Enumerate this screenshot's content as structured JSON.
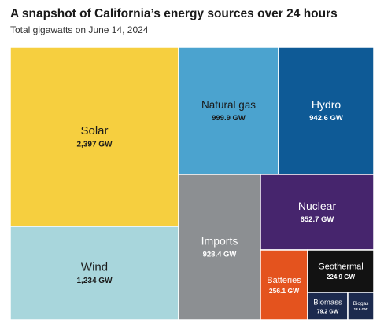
{
  "title": "A snapshot of California’s energy sources over 24 hours",
  "subtitle": "Total gigawatts on June 14, 2024",
  "chart_data": {
    "type": "treemap",
    "unit": "GW",
    "items": [
      {
        "name": "Solar",
        "label": "2,397 GW",
        "value": 2397,
        "color": "#f6cf3f"
      },
      {
        "name": "Wind",
        "label": "1,234 GW",
        "value": 1234,
        "color": "#a8d6dc"
      },
      {
        "name": "Natural gas",
        "label": "999.9 GW",
        "value": 999.9,
        "color": "#4ba3cf"
      },
      {
        "name": "Hydro",
        "label": "942.6 GW",
        "value": 942.6,
        "color": "#0e5a96"
      },
      {
        "name": "Imports",
        "label": "928.4 GW",
        "value": 928.4,
        "color": "#8c8f92"
      },
      {
        "name": "Nuclear",
        "label": "652.7 GW",
        "value": 652.7,
        "color": "#46256d"
      },
      {
        "name": "Batteries",
        "label": "256.1 GW",
        "value": 256.1,
        "color": "#e4531e"
      },
      {
        "name": "Geothermal",
        "label": "224.9 GW",
        "value": 224.9,
        "color": "#121212"
      },
      {
        "name": "Biomass",
        "label": "79.2 GW",
        "value": 79.2,
        "color": "#1c2a4e"
      },
      {
        "name": "Biogas",
        "label": "18.6 GW",
        "value": 18.6,
        "color": "#1c2a4e"
      }
    ]
  }
}
